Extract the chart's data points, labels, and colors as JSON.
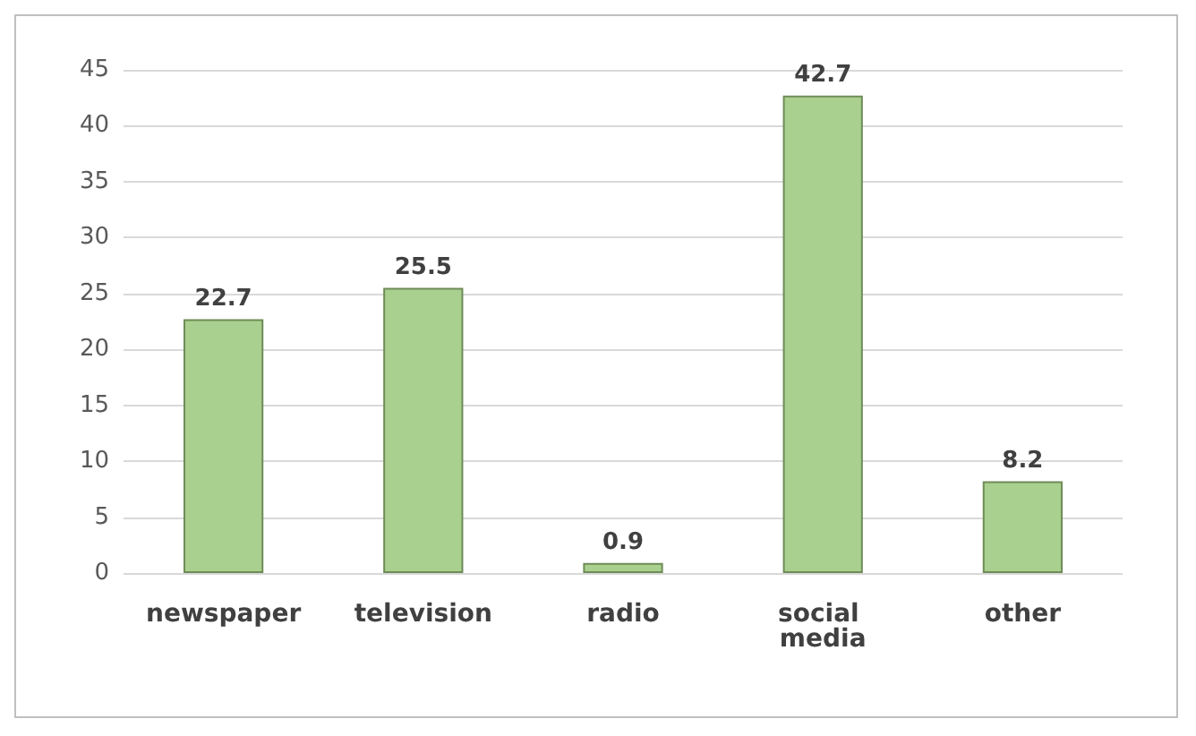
{
  "chart_data": {
    "type": "bar",
    "categories": [
      "newspaper",
      "television",
      "radio",
      "social media",
      "other"
    ],
    "values": [
      22.7,
      25.5,
      0.9,
      42.7,
      8.2
    ],
    "color": "#a9d08e",
    "ylim": [
      0,
      45
    ],
    "yticks": [
      0,
      5,
      10,
      15,
      20,
      25,
      30,
      35,
      40,
      45
    ],
    "grid": "y",
    "data_labels": true
  }
}
